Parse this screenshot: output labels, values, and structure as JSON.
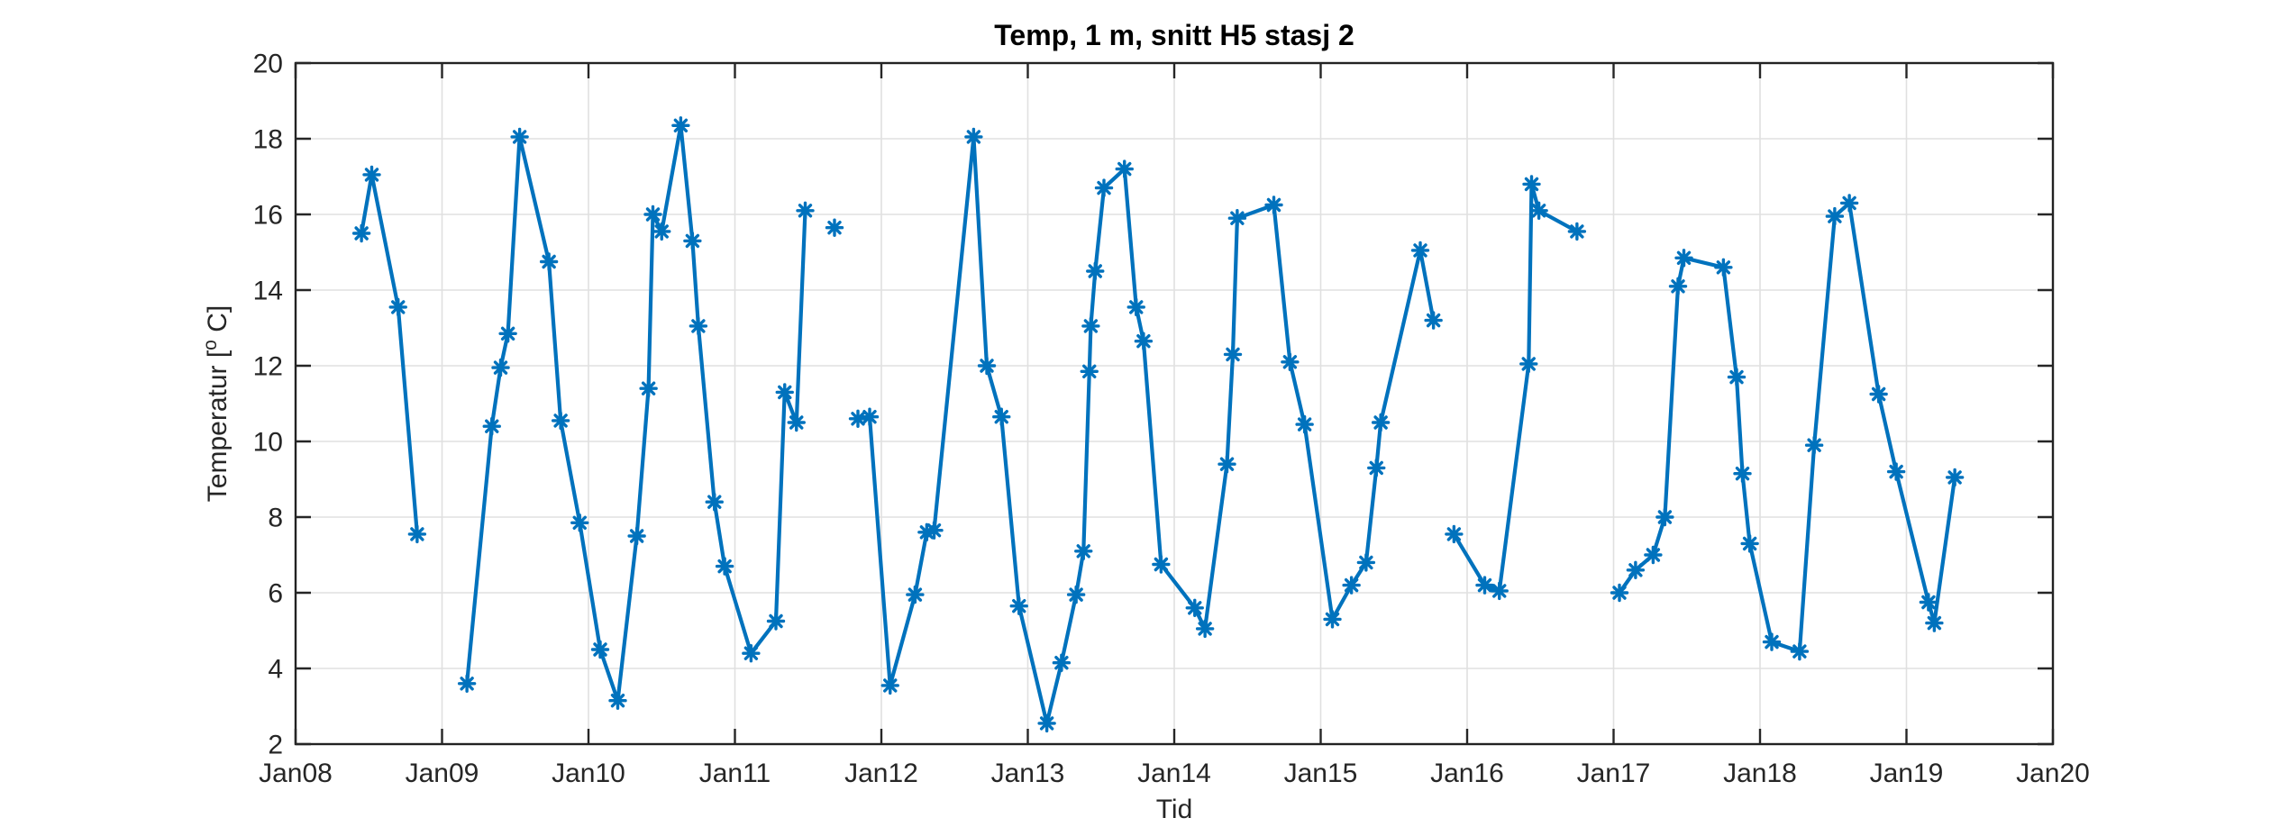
{
  "figure": {
    "title": "Temp, 1 m, snitt H5 stasj 2",
    "xlabel": "Tid",
    "ylabel": "Temperatur [° C]",
    "ylabel_parts": {
      "prefix": "Temperatur [",
      "superscript": "o",
      "suffix": " C]"
    }
  },
  "chart_data": {
    "type": "line",
    "title": "Temp, 1 m, snitt H5 stasj 2",
    "xlabel": "Tid",
    "ylabel": "Temperatur [° C]",
    "grid": true,
    "legend": "none",
    "line_color": "#0072BD",
    "marker": "*",
    "axis_color": "#262626",
    "grid_color": "#e0e0e0",
    "x_axis": {
      "min": 2008,
      "max": 2020,
      "tick_values": [
        2008,
        2009,
        2010,
        2011,
        2012,
        2013,
        2014,
        2015,
        2016,
        2017,
        2018,
        2019,
        2020
      ],
      "tick_labels": [
        "Jan08",
        "Jan09",
        "Jan10",
        "Jan11",
        "Jan12",
        "Jan13",
        "Jan14",
        "Jan15",
        "Jan16",
        "Jan17",
        "Jan18",
        "Jan19",
        "Jan20"
      ]
    },
    "y_axis": {
      "min": 2,
      "max": 20,
      "tick_values": [
        2,
        4,
        6,
        8,
        10,
        12,
        14,
        16,
        18,
        20
      ],
      "tick_labels": [
        "2",
        "4",
        "6",
        "8",
        "10",
        "12",
        "14",
        "16",
        "18",
        "20"
      ]
    },
    "segments": [
      [
        [
          2008.45,
          15.5
        ],
        [
          2008.52,
          17.05
        ],
        [
          2008.7,
          13.55
        ],
        [
          2008.83,
          7.55
        ]
      ],
      [
        [
          2009.17,
          3.6
        ],
        [
          2009.34,
          10.4
        ],
        [
          2009.4,
          11.95
        ],
        [
          2009.45,
          12.85
        ],
        [
          2009.53,
          18.05
        ],
        [
          2009.73,
          14.75
        ],
        [
          2009.81,
          10.55
        ],
        [
          2009.94,
          7.85
        ],
        [
          2010.08,
          4.5
        ],
        [
          2010.2,
          3.15
        ],
        [
          2010.33,
          7.5
        ],
        [
          2010.41,
          11.4
        ],
        [
          2010.44,
          16.0
        ],
        [
          2010.5,
          15.55
        ],
        [
          2010.63,
          18.35
        ],
        [
          2010.71,
          15.3
        ],
        [
          2010.75,
          13.05
        ],
        [
          2010.86,
          8.4
        ],
        [
          2010.93,
          6.7
        ],
        [
          2011.11,
          4.4
        ],
        [
          2011.28,
          5.25
        ],
        [
          2011.34,
          11.3
        ],
        [
          2011.42,
          10.5
        ],
        [
          2011.48,
          16.1
        ]
      ],
      [
        [
          2011.68,
          15.65
        ]
      ],
      [
        [
          2011.84,
          10.6
        ],
        [
          2011.92,
          10.65
        ],
        [
          2012.06,
          3.55
        ],
        [
          2012.23,
          5.95
        ],
        [
          2012.31,
          7.6
        ],
        [
          2012.36,
          7.65
        ],
        [
          2012.63,
          18.05
        ],
        [
          2012.72,
          12.0
        ],
        [
          2012.82,
          10.65
        ],
        [
          2012.94,
          5.65
        ],
        [
          2013.13,
          2.55
        ],
        [
          2013.23,
          4.15
        ],
        [
          2013.33,
          5.95
        ],
        [
          2013.38,
          7.1
        ],
        [
          2013.42,
          11.85
        ],
        [
          2013.43,
          13.05
        ],
        [
          2013.46,
          14.5
        ],
        [
          2013.52,
          16.7
        ],
        [
          2013.66,
          17.2
        ],
        [
          2013.74,
          13.55
        ],
        [
          2013.79,
          12.65
        ],
        [
          2013.91,
          6.75
        ],
        [
          2014.14,
          5.6
        ],
        [
          2014.21,
          5.05
        ],
        [
          2014.36,
          9.4
        ],
        [
          2014.4,
          12.3
        ],
        [
          2014.43,
          15.9
        ],
        [
          2014.68,
          16.25
        ],
        [
          2014.79,
          12.1
        ],
        [
          2014.89,
          10.45
        ],
        [
          2015.08,
          5.3
        ],
        [
          2015.21,
          6.2
        ],
        [
          2015.31,
          6.8
        ],
        [
          2015.38,
          9.3
        ],
        [
          2015.41,
          10.5
        ],
        [
          2015.68,
          15.05
        ],
        [
          2015.77,
          13.2
        ]
      ],
      [
        [
          2015.91,
          7.55
        ],
        [
          2016.12,
          6.2
        ],
        [
          2016.22,
          6.05
        ],
        [
          2016.42,
          12.05
        ],
        [
          2016.44,
          16.8
        ],
        [
          2016.49,
          16.1
        ],
        [
          2016.75,
          15.55
        ]
      ],
      [
        [
          2017.04,
          6.0
        ],
        [
          2017.15,
          6.6
        ],
        [
          2017.27,
          7.0
        ],
        [
          2017.35,
          8.0
        ],
        [
          2017.44,
          14.1
        ],
        [
          2017.48,
          14.85
        ],
        [
          2017.75,
          14.6
        ],
        [
          2017.84,
          11.7
        ],
        [
          2017.88,
          9.15
        ],
        [
          2017.93,
          7.3
        ],
        [
          2018.08,
          4.7
        ],
        [
          2018.27,
          4.45
        ],
        [
          2018.37,
          9.9
        ],
        [
          2018.51,
          15.95
        ],
        [
          2018.61,
          16.3
        ],
        [
          2018.81,
          11.25
        ],
        [
          2018.93,
          9.2
        ],
        [
          2019.15,
          5.75
        ],
        [
          2019.19,
          5.2
        ],
        [
          2019.33,
          9.05
        ]
      ]
    ]
  }
}
